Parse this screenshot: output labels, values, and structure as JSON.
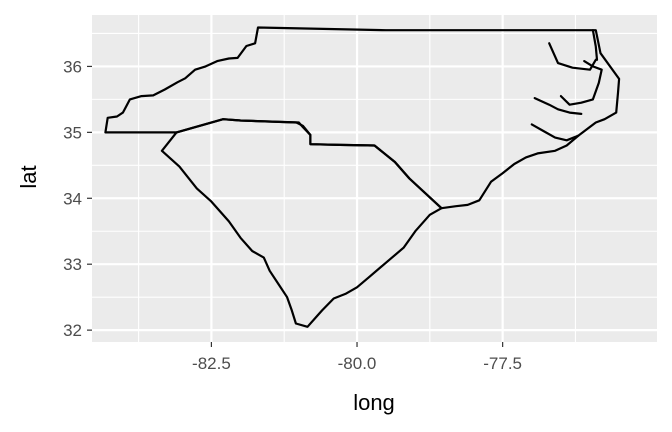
{
  "chart_data": {
    "type": "map",
    "xlabel": "long",
    "ylabel": "lat",
    "xlim": [
      -84.55,
      -74.85
    ],
    "ylim": [
      31.82,
      36.78
    ],
    "x_ticks": [
      {
        "value": -82.5,
        "label": "-82.5"
      },
      {
        "value": -80.0,
        "label": "-80.0"
      },
      {
        "value": -77.5,
        "label": "-77.5"
      }
    ],
    "x_minor": [
      -83.75,
      -81.25,
      -78.75,
      -76.25
    ],
    "y_ticks": [
      {
        "value": 32,
        "label": "32"
      },
      {
        "value": 33,
        "label": "33"
      },
      {
        "value": 34,
        "label": "34"
      },
      {
        "value": 35,
        "label": "35"
      },
      {
        "value": 36,
        "label": "36"
      }
    ],
    "y_minor": [
      32.5,
      33.5,
      34.5,
      35.5,
      36.5
    ],
    "panel_color": "#ebebeb",
    "grid_color": "#ffffff",
    "outline_color": "#000000",
    "regions": [
      {
        "id": "north-carolina",
        "coords": [
          [
            -84.32,
            35.0
          ],
          [
            -84.28,
            35.22
          ],
          [
            -84.12,
            35.24
          ],
          [
            -84.02,
            35.3
          ],
          [
            -83.9,
            35.5
          ],
          [
            -83.7,
            35.55
          ],
          [
            -83.5,
            35.56
          ],
          [
            -83.3,
            35.65
          ],
          [
            -83.08,
            35.76
          ],
          [
            -82.95,
            35.82
          ],
          [
            -82.78,
            35.95
          ],
          [
            -82.6,
            36.0
          ],
          [
            -82.4,
            36.08
          ],
          [
            -82.2,
            36.12
          ],
          [
            -82.05,
            36.13
          ],
          [
            -81.9,
            36.31
          ],
          [
            -81.75,
            36.35
          ],
          [
            -81.7,
            36.59
          ],
          [
            -79.5,
            36.55
          ],
          [
            -78.0,
            36.55
          ],
          [
            -76.5,
            36.55
          ],
          [
            -75.9,
            36.55
          ],
          [
            -75.82,
            36.2
          ],
          [
            -75.5,
            35.81
          ],
          [
            -75.52,
            35.6
          ],
          [
            -75.55,
            35.3
          ],
          [
            -75.75,
            35.2
          ],
          [
            -75.9,
            35.15
          ],
          [
            -76.2,
            34.95
          ],
          [
            -76.4,
            34.8
          ],
          [
            -76.6,
            34.72
          ],
          [
            -76.9,
            34.68
          ],
          [
            -77.1,
            34.62
          ],
          [
            -77.3,
            34.52
          ],
          [
            -77.5,
            34.38
          ],
          [
            -77.7,
            34.25
          ],
          [
            -77.9,
            33.97
          ],
          [
            -78.1,
            33.9
          ],
          [
            -78.3,
            33.88
          ],
          [
            -78.55,
            33.85
          ],
          [
            -79.1,
            34.3
          ],
          [
            -79.35,
            34.55
          ],
          [
            -79.7,
            34.8
          ],
          [
            -80.3,
            34.81
          ],
          [
            -80.8,
            34.82
          ],
          [
            -80.8,
            34.96
          ],
          [
            -80.93,
            35.08
          ],
          [
            -81.0,
            35.15
          ],
          [
            -82.0,
            35.18
          ],
          [
            -82.3,
            35.2
          ],
          [
            -82.7,
            35.1
          ],
          [
            -83.1,
            35.0
          ],
          [
            -84.32,
            35.0
          ]
        ]
      },
      {
        "id": "south-carolina",
        "coords": [
          [
            -83.35,
            34.72
          ],
          [
            -83.1,
            35.0
          ],
          [
            -82.7,
            35.1
          ],
          [
            -82.3,
            35.2
          ],
          [
            -82.0,
            35.18
          ],
          [
            -81.04,
            35.15
          ],
          [
            -80.93,
            35.1
          ],
          [
            -80.8,
            34.96
          ],
          [
            -80.8,
            34.82
          ],
          [
            -80.3,
            34.81
          ],
          [
            -79.7,
            34.8
          ],
          [
            -79.35,
            34.55
          ],
          [
            -79.1,
            34.3
          ],
          [
            -78.55,
            33.85
          ],
          [
            -78.75,
            33.75
          ],
          [
            -79.0,
            33.5
          ],
          [
            -79.2,
            33.25
          ],
          [
            -79.4,
            33.1
          ],
          [
            -79.6,
            32.95
          ],
          [
            -79.8,
            32.8
          ],
          [
            -80.0,
            32.65
          ],
          [
            -80.2,
            32.55
          ],
          [
            -80.4,
            32.48
          ],
          [
            -80.6,
            32.3
          ],
          [
            -80.7,
            32.2
          ],
          [
            -80.85,
            32.05
          ],
          [
            -81.05,
            32.1
          ],
          [
            -81.12,
            32.3
          ],
          [
            -81.2,
            32.5
          ],
          [
            -81.35,
            32.7
          ],
          [
            -81.5,
            32.9
          ],
          [
            -81.6,
            33.1
          ],
          [
            -81.8,
            33.2
          ],
          [
            -82.0,
            33.4
          ],
          [
            -82.2,
            33.65
          ],
          [
            -82.5,
            33.95
          ],
          [
            -82.75,
            34.15
          ],
          [
            -83.05,
            34.48
          ],
          [
            -83.35,
            34.72
          ]
        ]
      },
      {
        "id": "albemarle-sound",
        "coords": [
          [
            -76.7,
            36.35
          ],
          [
            -76.55,
            36.05
          ],
          [
            -76.3,
            35.98
          ],
          [
            -76.0,
            35.95
          ],
          [
            -75.9,
            36.1
          ]
        ]
      },
      {
        "id": "pamlico-sound",
        "coords": [
          [
            -76.5,
            35.55
          ],
          [
            -76.35,
            35.42
          ],
          [
            -76.15,
            35.45
          ],
          [
            -75.95,
            35.5
          ],
          [
            -75.85,
            35.75
          ],
          [
            -75.8,
            35.95
          ],
          [
            -75.95,
            36.0
          ],
          [
            -76.1,
            36.08
          ]
        ]
      },
      {
        "id": "pamlico-inlet",
        "coords": [
          [
            -76.95,
            35.52
          ],
          [
            -76.7,
            35.42
          ],
          [
            -76.55,
            35.35
          ],
          [
            -76.35,
            35.3
          ],
          [
            -76.15,
            35.28
          ]
        ]
      },
      {
        "id": "neuse-inlet",
        "coords": [
          [
            -77.0,
            35.12
          ],
          [
            -76.8,
            35.02
          ],
          [
            -76.6,
            34.92
          ],
          [
            -76.4,
            34.88
          ],
          [
            -76.2,
            34.95
          ]
        ]
      },
      {
        "id": "currituck-sound",
        "coords": [
          [
            -75.95,
            36.55
          ],
          [
            -75.9,
            36.3
          ],
          [
            -75.88,
            36.1
          ]
        ]
      }
    ]
  }
}
